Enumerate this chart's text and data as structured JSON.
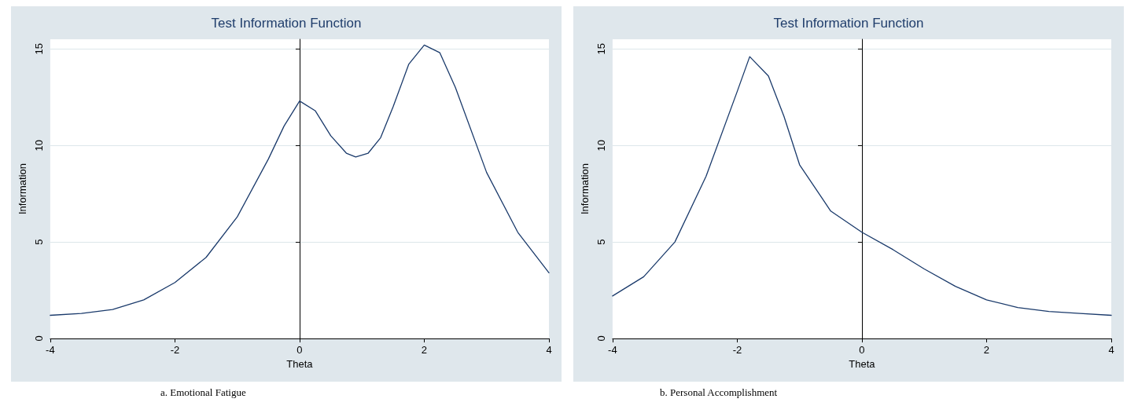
{
  "chart_data": [
    {
      "type": "line",
      "title": "Test Information Function",
      "xlabel": "Theta",
      "ylabel": "Information",
      "xlim": [
        -4,
        4
      ],
      "xticks": [
        -4,
        -2,
        0,
        2,
        4
      ],
      "ylim": [
        0,
        15.5
      ],
      "yticks": [
        0,
        5,
        10,
        15
      ],
      "grid": "y",
      "marker": "none",
      "line_style": "solid",
      "annotations": [
        "a. Emotional Fatigue"
      ],
      "series": [
        {
          "color": "#1a3a6b",
          "x": [
            -4,
            -3.5,
            -3,
            -2.5,
            -2,
            -1.5,
            -1,
            -0.5,
            -0.25,
            0,
            0.25,
            0.5,
            0.75,
            0.9,
            1.1,
            1.3,
            1.5,
            1.75,
            2,
            2.25,
            2.5,
            3,
            3.5,
            4
          ],
          "values": [
            1.2,
            1.3,
            1.5,
            2.0,
            2.9,
            4.2,
            6.3,
            9.3,
            11.0,
            12.3,
            11.8,
            10.5,
            9.6,
            9.4,
            9.6,
            10.4,
            12.0,
            14.2,
            15.2,
            14.8,
            13.0,
            8.6,
            5.5,
            3.4
          ]
        }
      ]
    },
    {
      "type": "line",
      "title": "Test Information Function",
      "xlabel": "Theta",
      "ylabel": "Information",
      "xlim": [
        -4,
        4
      ],
      "xticks": [
        -4,
        -2,
        0,
        2,
        4
      ],
      "ylim": [
        0,
        15.5
      ],
      "yticks": [
        0,
        5,
        10,
        15
      ],
      "grid": "y",
      "marker": "none",
      "line_style": "solid",
      "annotations": [
        "b. Personal Accomplishment"
      ],
      "series": [
        {
          "color": "#1a3a6b",
          "x": [
            -4,
            -3.5,
            -3,
            -2.5,
            -2,
            -1.8,
            -1.5,
            -1.25,
            -1,
            -0.5,
            0,
            0.5,
            1,
            1.5,
            2,
            2.5,
            3,
            3.5,
            4
          ],
          "values": [
            2.2,
            3.2,
            5.0,
            8.4,
            12.8,
            14.6,
            13.6,
            11.5,
            9.0,
            6.6,
            5.5,
            4.6,
            3.6,
            2.7,
            2.0,
            1.6,
            1.4,
            1.3,
            1.2
          ]
        }
      ]
    }
  ]
}
